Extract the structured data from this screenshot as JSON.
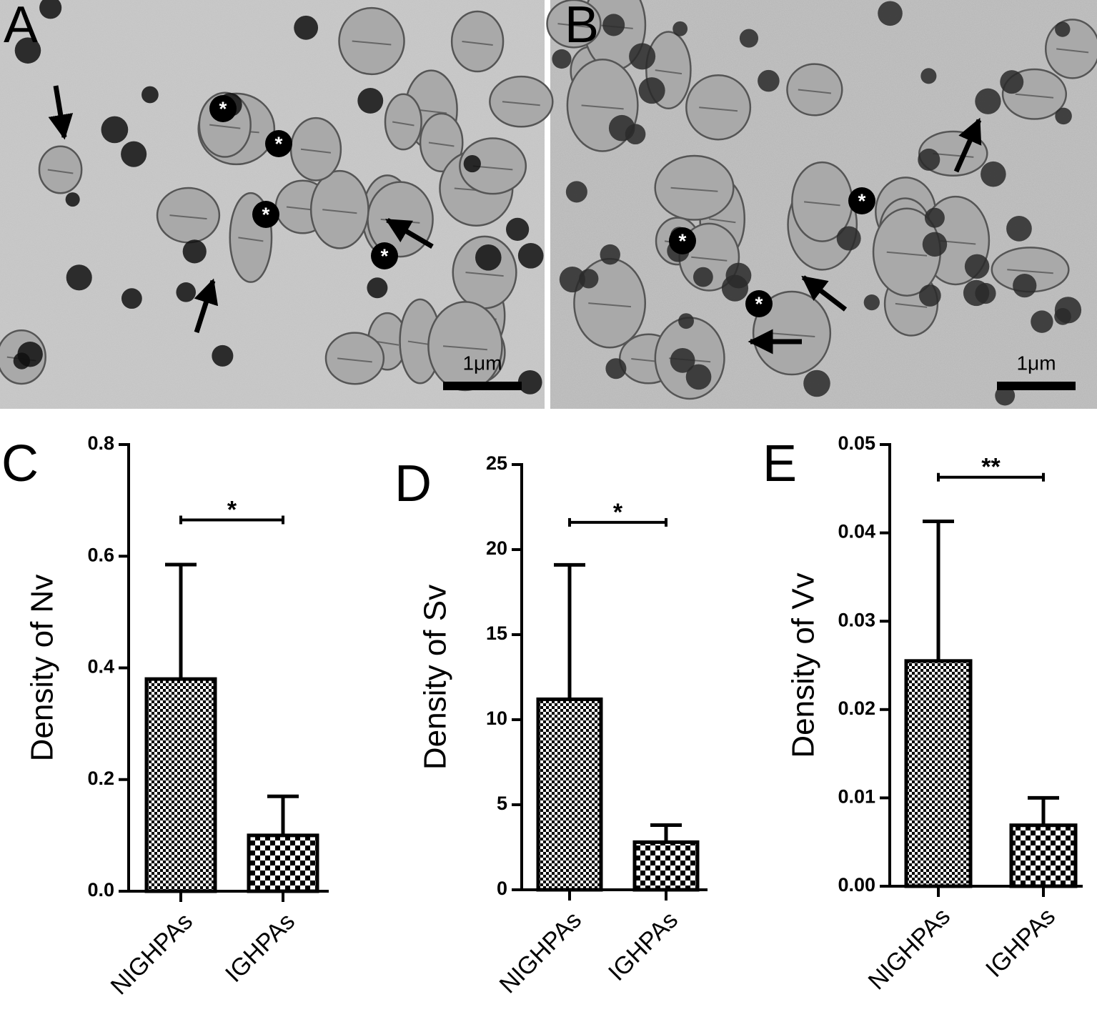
{
  "panels": [
    {
      "label": "A",
      "scale_bar": "1μm"
    },
    {
      "label": "B",
      "scale_bar": "1μm"
    }
  ],
  "micrograph_marker": "*",
  "chart_data": [
    {
      "type": "bar",
      "panel": "C",
      "ylabel": "Density of Nv",
      "categories": [
        "NIGHPAs",
        "IGHPAs"
      ],
      "values": [
        0.38,
        0.1
      ],
      "errors": [
        0.205,
        0.07
      ],
      "annotation": "*",
      "ylim": [
        0,
        0.8
      ],
      "yticks": [
        {
          "value": 0,
          "label": "0.0"
        },
        0.2,
        0.4,
        0.6,
        0.8
      ]
    },
    {
      "type": "bar",
      "panel": "D",
      "ylabel": "Density of Sv",
      "categories": [
        "NIGHPAs",
        "IGHPAs"
      ],
      "values": [
        11.2,
        2.8
      ],
      "errors": [
        7.9,
        1.0
      ],
      "annotation": "*",
      "ylim": [
        0,
        25
      ],
      "yticks": [
        0,
        5,
        10,
        15,
        20,
        25
      ]
    },
    {
      "type": "bar",
      "panel": "E",
      "ylabel": "Density of Vv",
      "categories": [
        "NIGHPAs",
        "IGHPAs"
      ],
      "values": [
        0.0255,
        0.0069
      ],
      "errors": [
        0.0158,
        0.0031
      ],
      "annotation": "**",
      "ylim": [
        0,
        0.05
      ],
      "yticks": [
        {
          "value": 0,
          "label": "0.00"
        },
        {
          "value": 0.01,
          "label": "0.01"
        },
        {
          "value": 0.02,
          "label": "0.02"
        },
        {
          "value": 0.03,
          "label": "0.03"
        },
        {
          "value": 0.04,
          "label": "0.04"
        },
        {
          "value": 0.05,
          "label": "0.05"
        }
      ]
    }
  ]
}
